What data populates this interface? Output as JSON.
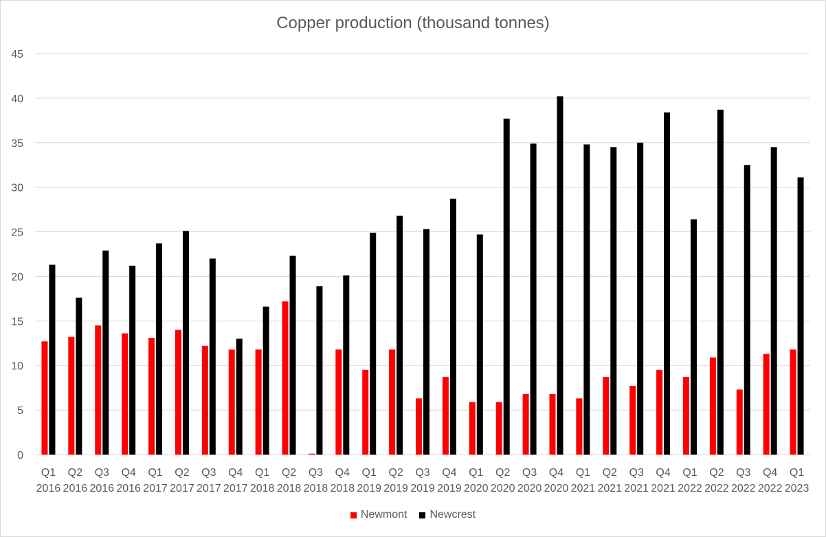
{
  "chart_data": {
    "type": "bar",
    "title": "Copper production (thousand tonnes)",
    "xlabel": "",
    "ylabel": "",
    "ylim": [
      0,
      45
    ],
    "yticks": [
      0,
      5,
      10,
      15,
      20,
      25,
      30,
      35,
      40,
      45
    ],
    "grid": true,
    "legend_position": "bottom",
    "categories": [
      [
        "Q1",
        "2016"
      ],
      [
        "Q2",
        "2016"
      ],
      [
        "Q3",
        "2016"
      ],
      [
        "Q4",
        "2016"
      ],
      [
        "Q1",
        "2017"
      ],
      [
        "Q2",
        "2017"
      ],
      [
        "Q3",
        "2017"
      ],
      [
        "Q4",
        "2017"
      ],
      [
        "Q1",
        "2018"
      ],
      [
        "Q2",
        "2018"
      ],
      [
        "Q3",
        "2018"
      ],
      [
        "Q4",
        "2018"
      ],
      [
        "Q1",
        "2019"
      ],
      [
        "Q2",
        "2019"
      ],
      [
        "Q3",
        "2019"
      ],
      [
        "Q4",
        "2019"
      ],
      [
        "Q1",
        "2020"
      ],
      [
        "Q2",
        "2020"
      ],
      [
        "Q3",
        "2020"
      ],
      [
        "Q4",
        "2020"
      ],
      [
        "Q1",
        "2021"
      ],
      [
        "Q2",
        "2021"
      ],
      [
        "Q3",
        "2021"
      ],
      [
        "Q4",
        "2021"
      ],
      [
        "Q1",
        "2022"
      ],
      [
        "Q2",
        "2022"
      ],
      [
        "Q3",
        "2022"
      ],
      [
        "Q4",
        "2022"
      ],
      [
        "Q1",
        "2023"
      ]
    ],
    "series": [
      {
        "name": "Newmont",
        "color": "#ff0000",
        "values": [
          12.7,
          13.2,
          14.5,
          13.6,
          13.1,
          14.0,
          12.2,
          11.8,
          11.8,
          17.2,
          0.1,
          11.8,
          9.5,
          11.8,
          6.3,
          8.7,
          5.9,
          5.9,
          6.8,
          6.8,
          6.3,
          8.7,
          7.7,
          9.5,
          8.7,
          10.9,
          7.3,
          11.3,
          11.8
        ]
      },
      {
        "name": "Newcrest",
        "color": "#000000",
        "values": [
          21.3,
          17.6,
          22.9,
          21.2,
          23.7,
          25.1,
          22.0,
          13.0,
          16.6,
          22.3,
          18.9,
          20.1,
          24.9,
          26.8,
          25.3,
          28.7,
          24.7,
          37.7,
          34.9,
          40.2,
          34.8,
          34.5,
          35.0,
          38.4,
          26.4,
          38.7,
          32.5,
          34.5,
          31.1
        ]
      }
    ]
  }
}
